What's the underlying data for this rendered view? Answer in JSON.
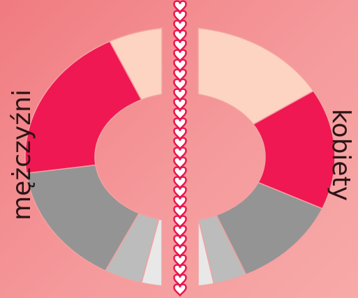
{
  "colors": {
    "background": "#f38a8e",
    "hearts_fill": "#e8174f",
    "hearts_outline": "#ffffff",
    "palette": [
      "#ffffff",
      "#fdd3c1",
      "#ef1853",
      "#949494",
      "#bcbcbc",
      "#e8e8e8"
    ]
  },
  "chart_data": [
    {
      "type": "pie",
      "style": "donut-half",
      "side": "left",
      "label": "mężczyźni",
      "slices": [
        {
          "value": 1,
          "color": "#ffffff"
        },
        {
          "value": 14,
          "color": "#fdd3c1"
        },
        {
          "value": 39,
          "color": "#ef1853"
        },
        {
          "value": 30,
          "color": "#949494"
        },
        {
          "value": 8,
          "color": "#bcbcbc"
        },
        {
          "value": 8,
          "color": "#e8e8e8"
        }
      ]
    },
    {
      "type": "pie",
      "style": "donut-half",
      "side": "right",
      "label": "kobiety",
      "slices": [
        {
          "value": 3,
          "color": "#ffffff"
        },
        {
          "value": 30,
          "color": "#fdd3c1"
        },
        {
          "value": 30,
          "color": "#ef1853"
        },
        {
          "value": 23,
          "color": "#949494"
        },
        {
          "value": 7,
          "color": "#bcbcbc"
        },
        {
          "value": 7,
          "color": "#e8e8e8"
        }
      ]
    }
  ]
}
